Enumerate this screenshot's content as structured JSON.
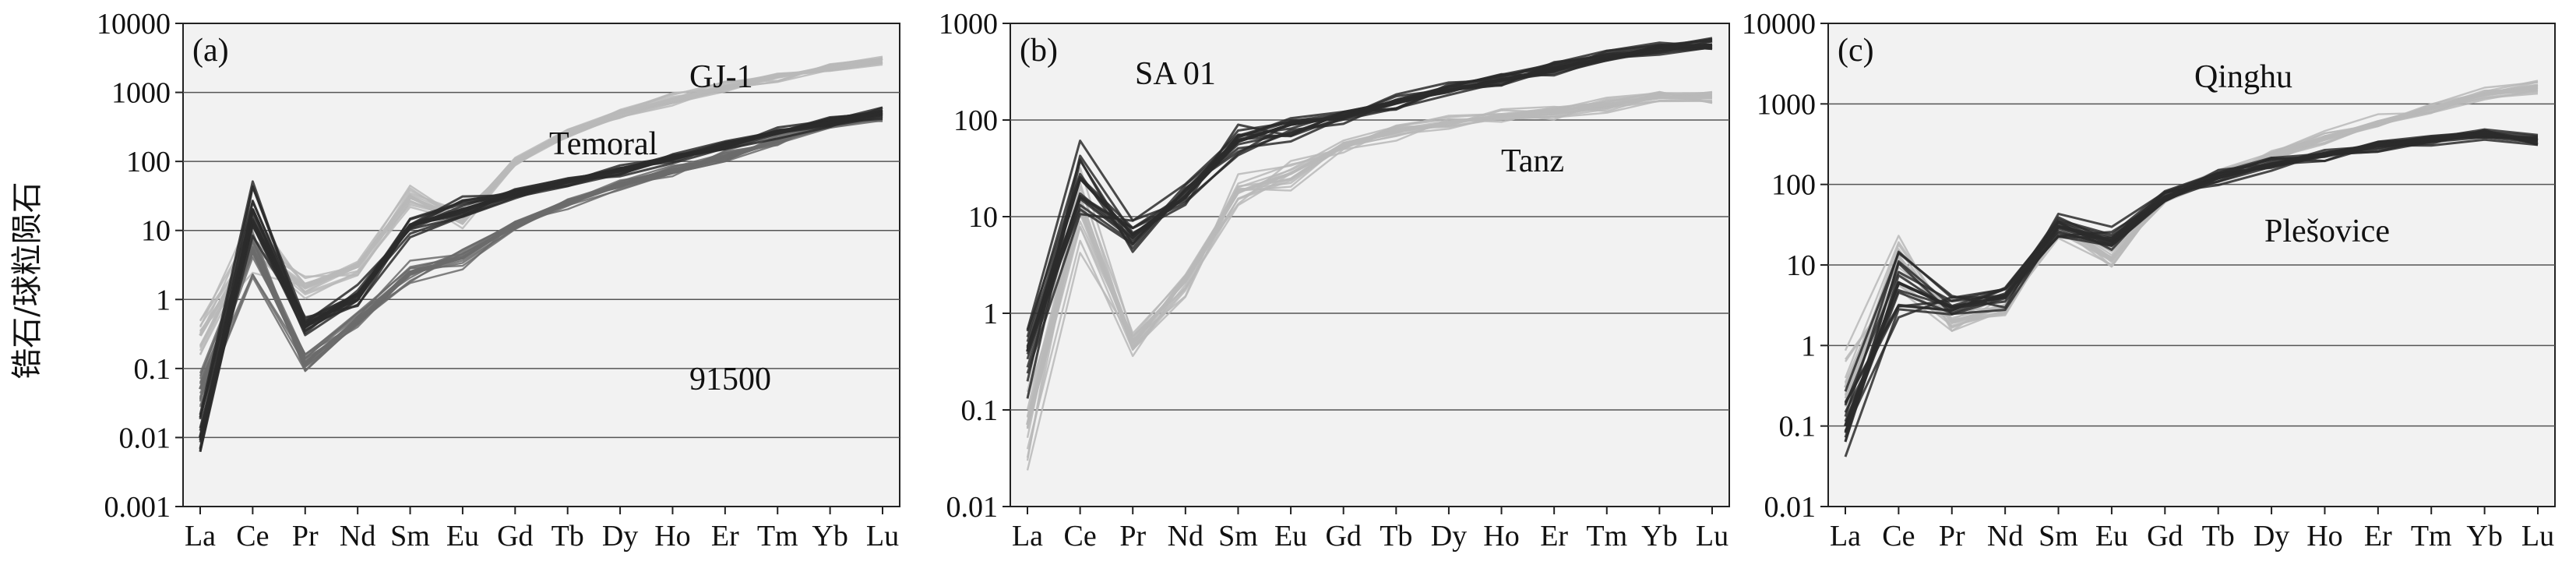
{
  "figure": {
    "ylabel": "锆石/球粒陨石"
  },
  "elements": [
    "La",
    "Ce",
    "Pr",
    "Nd",
    "Sm",
    "Eu",
    "Gd",
    "Tb",
    "Dy",
    "Ho",
    "Er",
    "Tm",
    "Yb",
    "Lu"
  ],
  "colors": {
    "panel_bg": "#f2f2f2",
    "grid": "#555555",
    "dark_series": "#2b2b2b",
    "mid_series": "#6b6b6b",
    "light_series": "#b9b9b9"
  },
  "chart_data": [
    {
      "type": "line",
      "panel": "(a)",
      "yscale": "log",
      "ylim": [
        0.001,
        10000
      ],
      "yticks": [
        "0.001",
        "0.01",
        "0.1",
        "1",
        "10",
        "100",
        "1000",
        "10000"
      ],
      "categories": [
        "La",
        "Ce",
        "Pr",
        "Nd",
        "Sm",
        "Eu",
        "Gd",
        "Tb",
        "Dy",
        "Ho",
        "Er",
        "Tm",
        "Yb",
        "Lu"
      ],
      "series": [
        {
          "name": "Temoral",
          "shade": "light",
          "values": [
            0.3,
            6,
            1.5,
            3,
            30,
            15,
            100,
            250,
            500,
            800,
            1200,
            1700,
            2300,
            2800
          ]
        },
        {
          "name": "GJ-1",
          "shade": "dark",
          "values": [
            0.01,
            20,
            0.4,
            1.2,
            12,
            20,
            35,
            50,
            75,
            110,
            170,
            260,
            370,
            500
          ]
        },
        {
          "name": "91500",
          "shade": "mid",
          "values": [
            0.05,
            5,
            0.12,
            0.5,
            2.5,
            4,
            12,
            25,
            45,
            75,
            120,
            200,
            350,
            450
          ]
        }
      ]
    },
    {
      "type": "line",
      "panel": "(b)",
      "yscale": "log",
      "ylim": [
        0.01,
        1000
      ],
      "yticks": [
        "0.01",
        "0.1",
        "1",
        "10",
        "100",
        "1000"
      ],
      "categories": [
        "La",
        "Ce",
        "Pr",
        "Nd",
        "Sm",
        "Eu",
        "Gd",
        "Tb",
        "Dy",
        "Ho",
        "Er",
        "Tm",
        "Yb",
        "Lu"
      ],
      "series": [
        {
          "name": "SA 01",
          "shade": "dark",
          "values": [
            0.4,
            25,
            6.5,
            16,
            60,
            90,
            110,
            150,
            200,
            260,
            340,
            440,
            560,
            600
          ]
        },
        {
          "name": "Tanz",
          "shade": "light",
          "values": [
            0.07,
            12,
            0.5,
            2.2,
            18,
            28,
            55,
            75,
            95,
            110,
            125,
            145,
            170,
            175
          ]
        }
      ]
    },
    {
      "type": "line",
      "panel": "(c)",
      "yscale": "log",
      "ylim": [
        0.01,
        10000
      ],
      "yticks": [
        "0.01",
        "0.1",
        "1",
        "10",
        "100",
        "1000",
        "10000"
      ],
      "categories": [
        "La",
        "Ce",
        "Pr",
        "Nd",
        "Sm",
        "Eu",
        "Gd",
        "Tb",
        "Dy",
        "Ho",
        "Er",
        "Tm",
        "Yb",
        "Lu"
      ],
      "series": [
        {
          "name": "Qinghu",
          "shade": "light",
          "values": [
            0.3,
            12,
            2,
            3,
            30,
            12,
            70,
            130,
            230,
            380,
            600,
            900,
            1300,
            1600
          ]
        },
        {
          "name": "Plešovice",
          "shade": "dark",
          "values": [
            0.1,
            6,
            3,
            4,
            30,
            20,
            70,
            120,
            180,
            240,
            300,
            370,
            420,
            350
          ]
        }
      ]
    }
  ]
}
